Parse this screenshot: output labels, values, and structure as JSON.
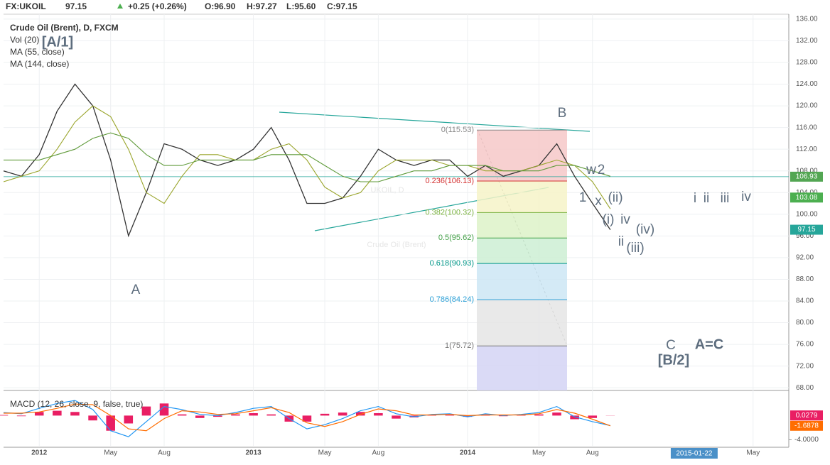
{
  "chart_data": {
    "type": "line",
    "header": {
      "symbol": "FX:UKOIL",
      "last": "97.15",
      "change": "+0.25 (+0.26%)",
      "open": "O:96.90",
      "high": "H:97.27",
      "low": "L:95.60",
      "close": "C:97.15"
    },
    "studies": [
      "Crude Oil (Brent), D, FXCM",
      "Vol (20)",
      "MA (55, close)",
      "MA (144, close)"
    ],
    "watermark": [
      "UKOIL, D",
      "Crude Oil (Brent)"
    ],
    "x": [
      "2011-11",
      "2011-12",
      "2012-01",
      "2012-02",
      "2012-03",
      "2012-04",
      "2012-05",
      "2012-06",
      "2012-07",
      "2012-08",
      "2012-09",
      "2012-10",
      "2012-11",
      "2012-12",
      "2013-01",
      "2013-02",
      "2013-03",
      "2013-04",
      "2013-05",
      "2013-06",
      "2013-07",
      "2013-08",
      "2013-09",
      "2013-10",
      "2013-11",
      "2013-12",
      "2014-01",
      "2014-02",
      "2014-03",
      "2014-04",
      "2014-05",
      "2014-06",
      "2014-07",
      "2014-08",
      "2014-09"
    ],
    "series": [
      {
        "name": "Crude Oil (Brent)",
        "color": "#333333",
        "values": [
          108,
          107,
          111,
          119,
          124,
          120,
          110,
          96,
          104,
          113,
          112,
          110,
          109,
          110,
          112,
          116,
          110,
          102,
          102,
          103,
          107,
          112,
          110,
          109,
          110,
          110,
          107,
          109,
          107,
          108,
          109,
          113,
          107,
          102,
          97.15
        ]
      },
      {
        "name": "MA (55, close)",
        "color": "#9aa52c",
        "values": [
          106,
          107,
          108,
          112,
          117,
          120,
          118,
          112,
          104,
          102,
          107,
          111,
          111,
          110,
          110,
          112,
          113,
          110,
          105,
          103,
          104,
          108,
          110,
          110,
          110,
          109,
          109,
          108,
          108,
          108,
          109,
          110,
          109,
          106,
          101
        ]
      },
      {
        "name": "MA (144, close)",
        "color": "#5f9a3a",
        "values": [
          110,
          110,
          110,
          111,
          112,
          114,
          115,
          114,
          111,
          109,
          109,
          110,
          110,
          110,
          110,
          111,
          111,
          111,
          109,
          107,
          106,
          106,
          107,
          108,
          108,
          109,
          109,
          109,
          108,
          108,
          108,
          109,
          109,
          108,
          107
        ]
      }
    ],
    "xlim": [
      "2011-11",
      "2015-07"
    ],
    "xticks": [
      {
        "value": "2012-01",
        "label": "2012"
      },
      {
        "value": "2012-05",
        "label": "May"
      },
      {
        "value": "2012-08",
        "label": "Aug"
      },
      {
        "value": "2013-01",
        "label": "2013"
      },
      {
        "value": "2013-05",
        "label": "May"
      },
      {
        "value": "2013-08",
        "label": "Aug"
      },
      {
        "value": "2014-01",
        "label": "2014"
      },
      {
        "value": "2014-05",
        "label": "May"
      },
      {
        "value": "2014-08",
        "label": "Aug"
      },
      {
        "value": "2015-05",
        "label": "May"
      }
    ],
    "crosshair_date": "2015-01-22",
    "ylim": [
      67.5,
      136.9
    ],
    "yticks": [
      {
        "value": 68,
        "label": "68.00"
      },
      {
        "value": 72,
        "label": "72.00"
      },
      {
        "value": 76,
        "label": "76.00"
      },
      {
        "value": 80,
        "label": "80.00"
      },
      {
        "value": 84,
        "label": "84.00"
      },
      {
        "value": 88,
        "label": "88.00"
      },
      {
        "value": 92,
        "label": "92.00"
      },
      {
        "value": 96,
        "label": "96.00"
      },
      {
        "value": 100,
        "label": "100.00"
      },
      {
        "value": 104,
        "label": "104.00"
      },
      {
        "value": 108,
        "label": "108.00"
      },
      {
        "value": 112,
        "label": "112.00"
      },
      {
        "value": 116,
        "label": "116.00"
      },
      {
        "value": 120,
        "label": "120.00"
      },
      {
        "value": 124,
        "label": "124.00"
      },
      {
        "value": 128,
        "label": "128.00"
      },
      {
        "value": 132,
        "label": "132.00"
      },
      {
        "value": 136,
        "label": "136.00"
      }
    ],
    "grid": true,
    "price_line": {
      "value": 106.93,
      "label": "106.93",
      "color": "#53a653"
    },
    "price_tags": [
      {
        "value": 103.08,
        "label": "103.08",
        "color": "#4caf50"
      },
      {
        "value": 97.15,
        "label": "97.15",
        "color": "#26a69a"
      }
    ],
    "fib_levels": [
      {
        "label": "0(115.53)",
        "value": 115.53,
        "color": "#888888",
        "fill": "#f6c8c8"
      },
      {
        "label": "0.236(106.13)",
        "value": 106.13,
        "color": "#d32f2f",
        "fill": "#f6f3c8"
      },
      {
        "label": "0.382(100.32)",
        "value": 100.32,
        "color": "#7cb342",
        "fill": "#ddf2c8"
      },
      {
        "label": "0.5(95.62)",
        "value": 95.62,
        "color": "#43a047",
        "fill": "#cdefd4"
      },
      {
        "label": "0.618(90.93)",
        "value": 90.93,
        "color": "#009688",
        "fill": "#cde6f4"
      },
      {
        "label": "0.786(84.24)",
        "value": 84.24,
        "color": "#2a9fd6",
        "fill": "#e5e5e5"
      },
      {
        "label": "1(75.72)",
        "value": 75.72,
        "color": "#777777",
        "fill": "#d3d3f4"
      }
    ],
    "annotations": [
      "[A/1]",
      "A",
      "B",
      "C",
      "[B/2]",
      "A=C",
      "1",
      "w",
      "2",
      "x",
      "(ii)",
      "(i)",
      "iv",
      "ii",
      "(iv)",
      "(iii)",
      "i",
      "ii",
      "iii",
      "iv"
    ],
    "macd": {
      "label": "MACD (12, 26, close, 9, false, true)",
      "ylim": [
        -5,
        3.8
      ],
      "yticks": [
        {
          "value": -4,
          "label": "-4.0000"
        }
      ],
      "series": [
        {
          "name": "MACD",
          "color": "#2196f3",
          "values": [
            0.5,
            0.3,
            1.2,
            2.0,
            2.5,
            1.0,
            -2.5,
            -3.5,
            -1.0,
            1.5,
            1.0,
            0.2,
            0.0,
            0.5,
            1.2,
            1.5,
            -0.5,
            -2.2,
            -1.5,
            -0.5,
            0.8,
            1.5,
            0.3,
            -0.2,
            0.2,
            0.3,
            -0.2,
            0.3,
            0.0,
            0.2,
            0.5,
            1.5,
            -0.2,
            -1.0,
            -1.66
          ]
        },
        {
          "name": "Signal",
          "color": "#ff6d00",
          "values": [
            0.4,
            0.4,
            0.6,
            1.2,
            1.9,
            1.8,
            0.0,
            -2.2,
            -2.5,
            -0.5,
            0.8,
            0.6,
            0.2,
            0.3,
            0.8,
            1.3,
            0.5,
            -1.2,
            -1.8,
            -1.0,
            0.2,
            1.1,
            0.8,
            0.1,
            0.1,
            0.2,
            0.0,
            0.1,
            0.1,
            0.1,
            0.3,
            1.0,
            0.4,
            -0.6,
            -1.6878
          ]
        }
      ],
      "histogram": {
        "color": "#e91e63",
        "values": [
          0.1,
          -0.1,
          0.6,
          0.8,
          0.6,
          -0.8,
          -2.5,
          -1.3,
          1.5,
          2.0,
          0.2,
          -0.4,
          -0.2,
          0.2,
          0.4,
          0.2,
          -1.0,
          -1.0,
          0.3,
          0.5,
          0.6,
          0.4,
          -0.5,
          -0.3,
          0.1,
          0.1,
          -0.2,
          0.2,
          -0.1,
          0.1,
          0.2,
          0.5,
          -0.6,
          -0.4,
          0.0279
        ]
      },
      "tags": [
        {
          "value": 0.0279,
          "label": "0.0279",
          "color": "#e91e63"
        },
        {
          "value": -1.6878,
          "label": "-1.6878",
          "color": "#ff6d00"
        }
      ]
    }
  }
}
